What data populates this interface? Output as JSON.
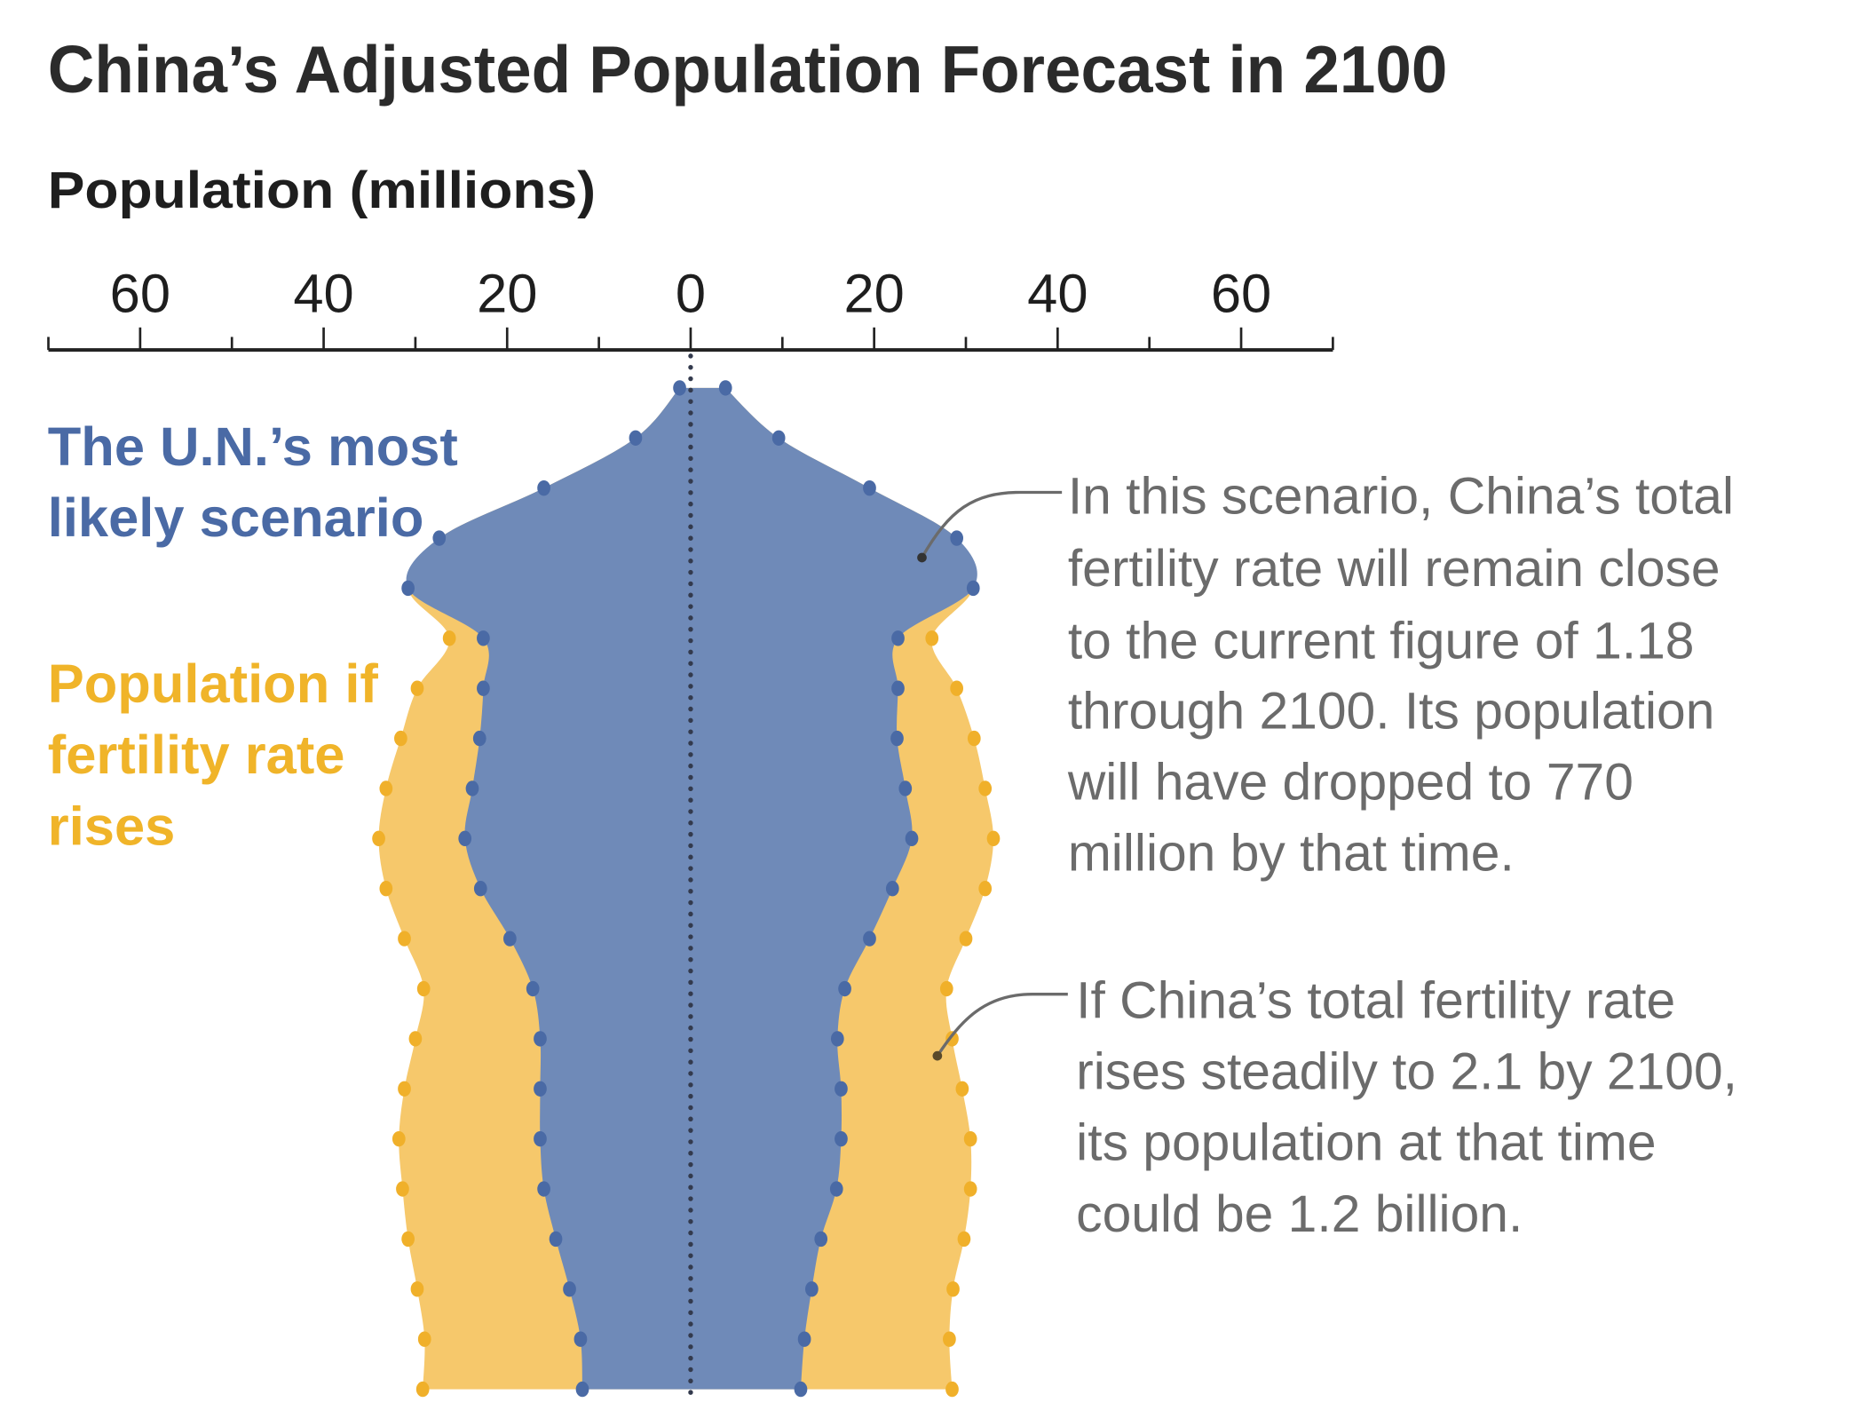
{
  "colors": {
    "un_scenario": "#6f8ab8",
    "un_dot": "#4a6aa5",
    "fertility_rises": "#f6c86b",
    "fertility_dot": "#f0b02a",
    "label_blue": "#4a6aa5",
    "label_orange": "#f0b429",
    "note_text": "#6b6b6b"
  },
  "chart_data": {
    "type": "area",
    "subtype": "population-pyramid",
    "title": "China’s Adjusted Population Forecast in 2100",
    "xlabel": "Population (millions)",
    "xlim": [
      -70,
      70
    ],
    "x_ticks": [
      -60,
      -40,
      -20,
      0,
      20,
      40,
      60
    ],
    "x_tick_labels": [
      "60",
      "40",
      "20",
      "0",
      "20",
      "40",
      "60"
    ],
    "grid": false,
    "series": [
      {
        "name": "The U.N.’s most likely scenario",
        "left": [
          1.2,
          6.0,
          16.0,
          27.4,
          30.8,
          22.6,
          22.6,
          23.0,
          23.8,
          24.6,
          22.9,
          19.7,
          17.2,
          16.4,
          16.4,
          16.4,
          16.0,
          14.7,
          13.2,
          12.0,
          11.8
        ],
        "right": [
          3.8,
          9.6,
          19.5,
          29.0,
          30.8,
          22.6,
          22.6,
          22.5,
          23.4,
          24.1,
          22.0,
          19.5,
          16.8,
          16.0,
          16.4,
          16.4,
          15.9,
          14.2,
          13.2,
          12.4,
          12.0
        ]
      },
      {
        "name": "Population if fertility rate rises",
        "left": [
          null,
          null,
          null,
          null,
          null,
          26.3,
          29.8,
          31.6,
          33.2,
          34.0,
          33.2,
          31.2,
          29.1,
          30.0,
          31.2,
          31.8,
          31.4,
          30.8,
          29.8,
          29.0,
          29.2
        ],
        "right": [
          null,
          null,
          null,
          null,
          null,
          26.3,
          29.0,
          30.9,
          32.1,
          33.0,
          32.1,
          30.0,
          27.9,
          28.5,
          29.6,
          30.5,
          30.5,
          29.8,
          28.6,
          28.2,
          28.5
        ]
      }
    ],
    "legend_labels": {
      "un": [
        "The U.N.’s most",
        "likely scenario"
      ],
      "fertility": [
        "Population if",
        "fertility rate",
        "rises"
      ]
    },
    "annotations": [
      {
        "lines": [
          "In this scenario, China’s total",
          "fertility rate will remain close",
          "to the current figure of 1.18",
          "through 2100. Its population",
          "will have dropped to 770",
          "million by that time."
        ]
      },
      {
        "lines": [
          "If China’s total fertility rate",
          "rises steadily to 2.1 by 2100,",
          "its population at that time",
          "could be 1.2 billion."
        ]
      }
    ]
  }
}
